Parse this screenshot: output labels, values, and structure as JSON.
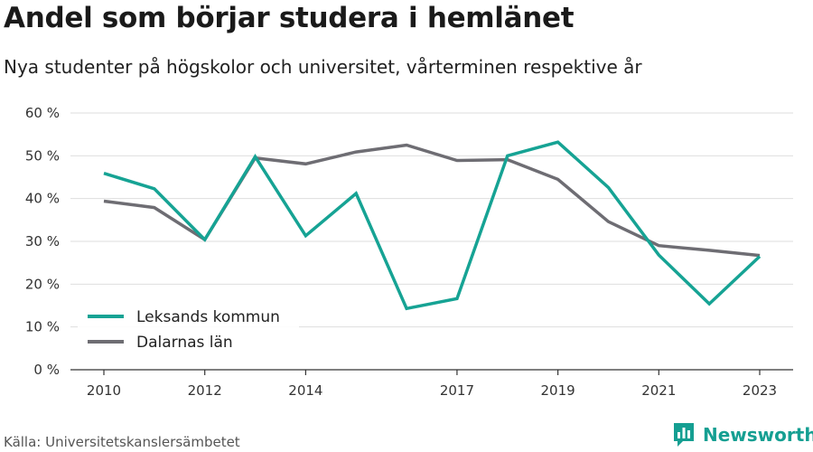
{
  "header": {
    "title": "Andel som börjar studera i hemlänet",
    "subtitle": "Nya studenter på högskolor och universitet, vårterminen respektive år"
  },
  "footer": {
    "source": "Källa: Universitetskanslersämbetet",
    "brand": "Newsworthy",
    "brand_icon": "bar-chart-logo-icon",
    "brand_color": "#159f92"
  },
  "chart_data": {
    "type": "line",
    "x": [
      2010,
      2011,
      2012,
      2013,
      2014,
      2015,
      2016,
      2017,
      2018,
      2019,
      2020,
      2021,
      2022,
      2023
    ],
    "x_ticks": [
      2010,
      2012,
      2014,
      2017,
      2019,
      2021,
      2023
    ],
    "y_ticks": [
      0,
      10,
      20,
      30,
      40,
      50,
      60
    ],
    "y_tick_suffix": " %",
    "ylim": [
      0,
      60
    ],
    "grid": true,
    "legend_position": "bottom-left",
    "series": [
      {
        "name": "Leksands kommun",
        "color": "#16a394",
        "values": [
          45.9,
          42.3,
          30.4,
          49.8,
          31.3,
          41.2,
          14.3,
          16.6,
          50.0,
          53.2,
          42.6,
          26.8,
          15.4,
          26.5
        ]
      },
      {
        "name": "Dalarnas län",
        "color": "#6e6d73",
        "values": [
          39.4,
          37.9,
          30.4,
          49.5,
          48.1,
          50.9,
          52.5,
          48.9,
          49.1,
          44.5,
          34.6,
          29.0,
          27.9,
          26.7
        ]
      }
    ]
  }
}
